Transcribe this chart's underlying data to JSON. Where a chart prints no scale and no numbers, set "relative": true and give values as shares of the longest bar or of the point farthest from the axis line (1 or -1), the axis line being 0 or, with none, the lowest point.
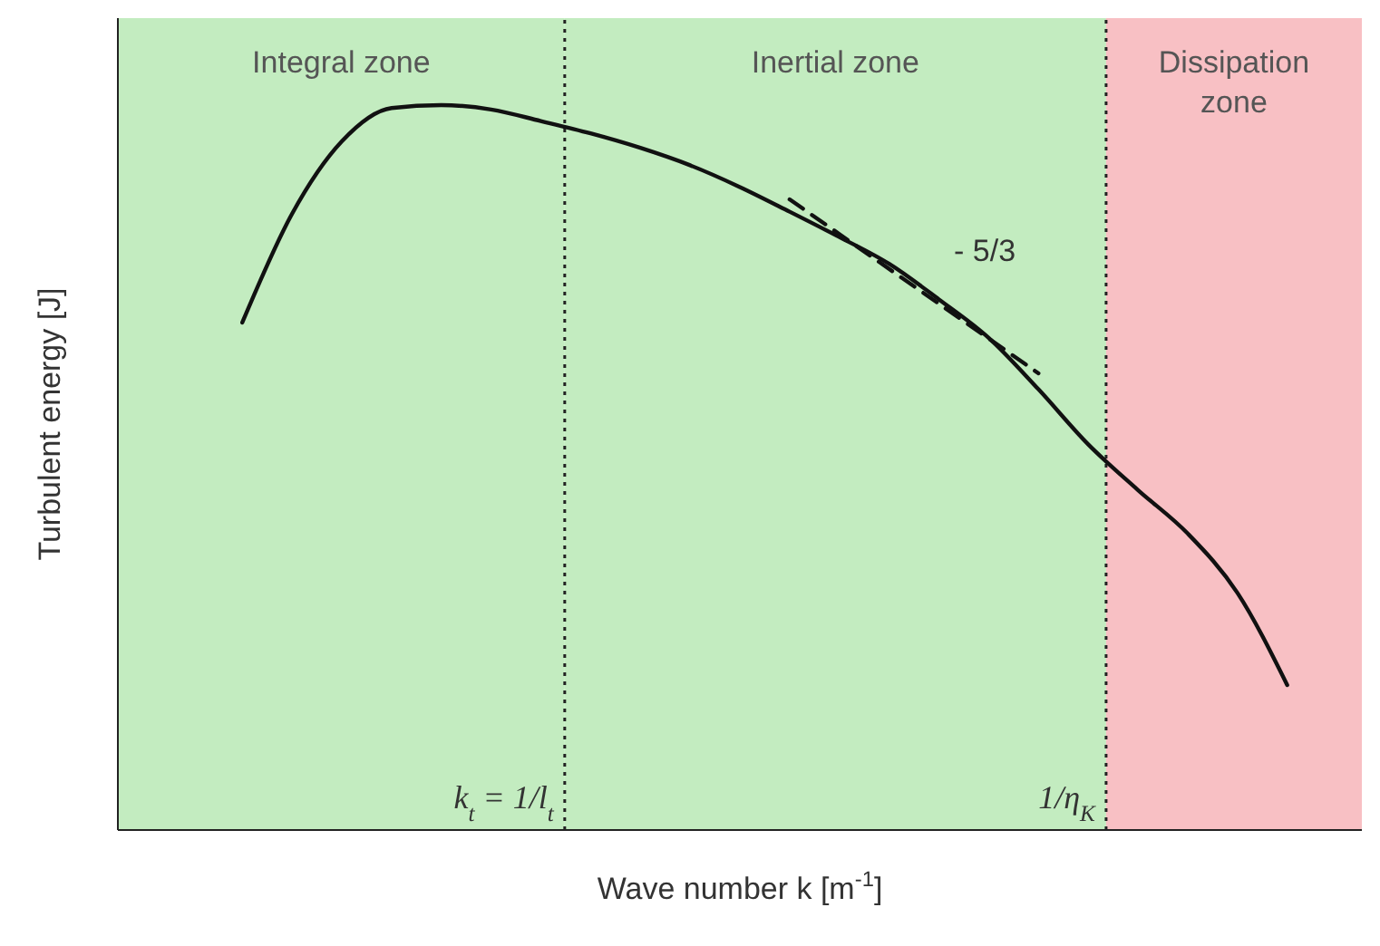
{
  "chart_data": {
    "type": "line",
    "relative": true,
    "xlabel": "Wave number k  [m$^{-1}$]",
    "ylabel": "Turbulent energy   [J]",
    "categories": [
      null,
      null,
      null,
      null,
      null,
      null,
      null,
      null,
      null,
      null,
      null,
      null,
      null,
      null,
      null,
      null,
      null,
      null,
      null,
      null,
      null,
      null,
      null,
      null,
      null
    ],
    "series": [
      {
        "type": "line",
        "color": "#111111",
        "line_style": "solid",
        "values": [
          null,
          null,
          0.7,
          0.85,
          0.95,
          0.996,
          1.0,
          0.994,
          0.978,
          0.961,
          0.941,
          0.917,
          0.887,
          0.853,
          0.818,
          0.781,
          0.732,
          0.679,
          0.608,
          0.532,
          0.469,
          0.409,
          0.327,
          0.2,
          null
        ]
      },
      {
        "type": "line",
        "color": "#111111",
        "line_style": "dashed",
        "values": [
          null,
          null,
          null,
          null,
          null,
          null,
          null,
          null,
          null,
          null,
          null,
          null,
          null,
          0.87,
          null,
          null,
          null,
          null,
          0.63,
          null,
          null,
          null,
          null,
          null,
          null
        ]
      }
    ],
    "annotations": [
      "Integral zone",
      "Inertial zone",
      "Dissipation zone",
      "k$_{t}$ = 1/l$_{t}$",
      "1/η$_{K}$",
      "- 5/3"
    ]
  }
}
